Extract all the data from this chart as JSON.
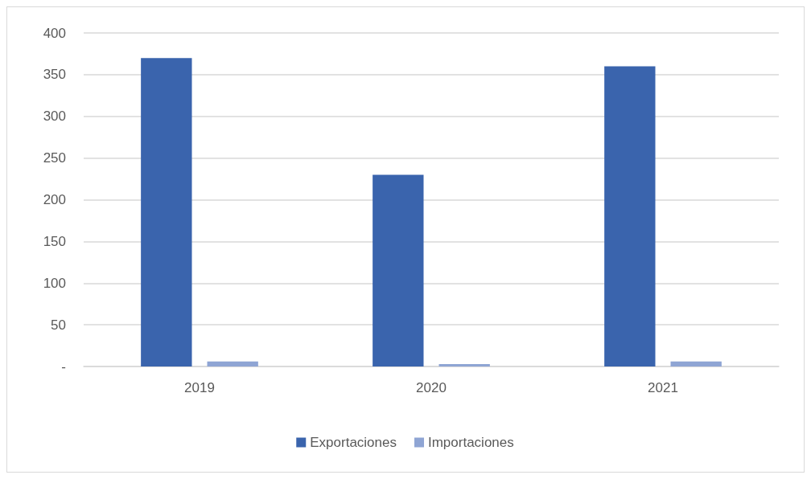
{
  "chart_data": {
    "type": "bar",
    "categories": [
      "2019",
      "2020",
      "2021"
    ],
    "series": [
      {
        "name": "Exportaciones",
        "color": "#3a64ad",
        "values": [
          370,
          230,
          360
        ]
      },
      {
        "name": "Importaciones",
        "color": "#8fa5d4",
        "values": [
          6,
          3,
          6
        ]
      }
    ],
    "ylim": [
      0,
      400
    ],
    "yticks": [
      {
        "value": 0,
        "label": "-"
      },
      50,
      100,
      150,
      200,
      250,
      300,
      350,
      400
    ],
    "grid": "y",
    "legend": "bottom"
  }
}
